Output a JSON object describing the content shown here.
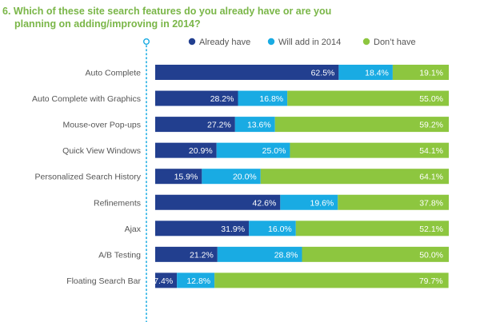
{
  "title_line1": "6. Which of these site search features do you already have or are you",
  "title_line2": "planning on adding/improving in 2014?",
  "chart_data": {
    "type": "bar",
    "orientation": "horizontal",
    "stacked": true,
    "value_format": "percent",
    "categories": [
      "Auto Complete",
      "Auto Complete with Graphics",
      "Mouse-over Pop-ups",
      "Quick View Windows",
      "Personalized Search History",
      "Refinements",
      "Ajax",
      "A/B Testing",
      "Floating Search Bar"
    ],
    "series": [
      {
        "name": "Already have",
        "color": "#223f8f",
        "values": [
          62.5,
          28.2,
          27.2,
          20.9,
          15.9,
          42.6,
          31.9,
          21.2,
          7.4
        ]
      },
      {
        "name": "Will add in 2014",
        "color": "#19abe3",
        "values": [
          18.4,
          16.8,
          13.6,
          25.0,
          20.0,
          19.6,
          16.0,
          28.8,
          12.8
        ]
      },
      {
        "name": "Don’t have",
        "color": "#8dc63f",
        "values": [
          19.1,
          55.0,
          59.2,
          54.1,
          64.1,
          37.8,
          52.1,
          50.0,
          79.7
        ]
      }
    ],
    "legend_position": "top-right",
    "grid": false,
    "xlim": [
      0,
      100
    ]
  }
}
